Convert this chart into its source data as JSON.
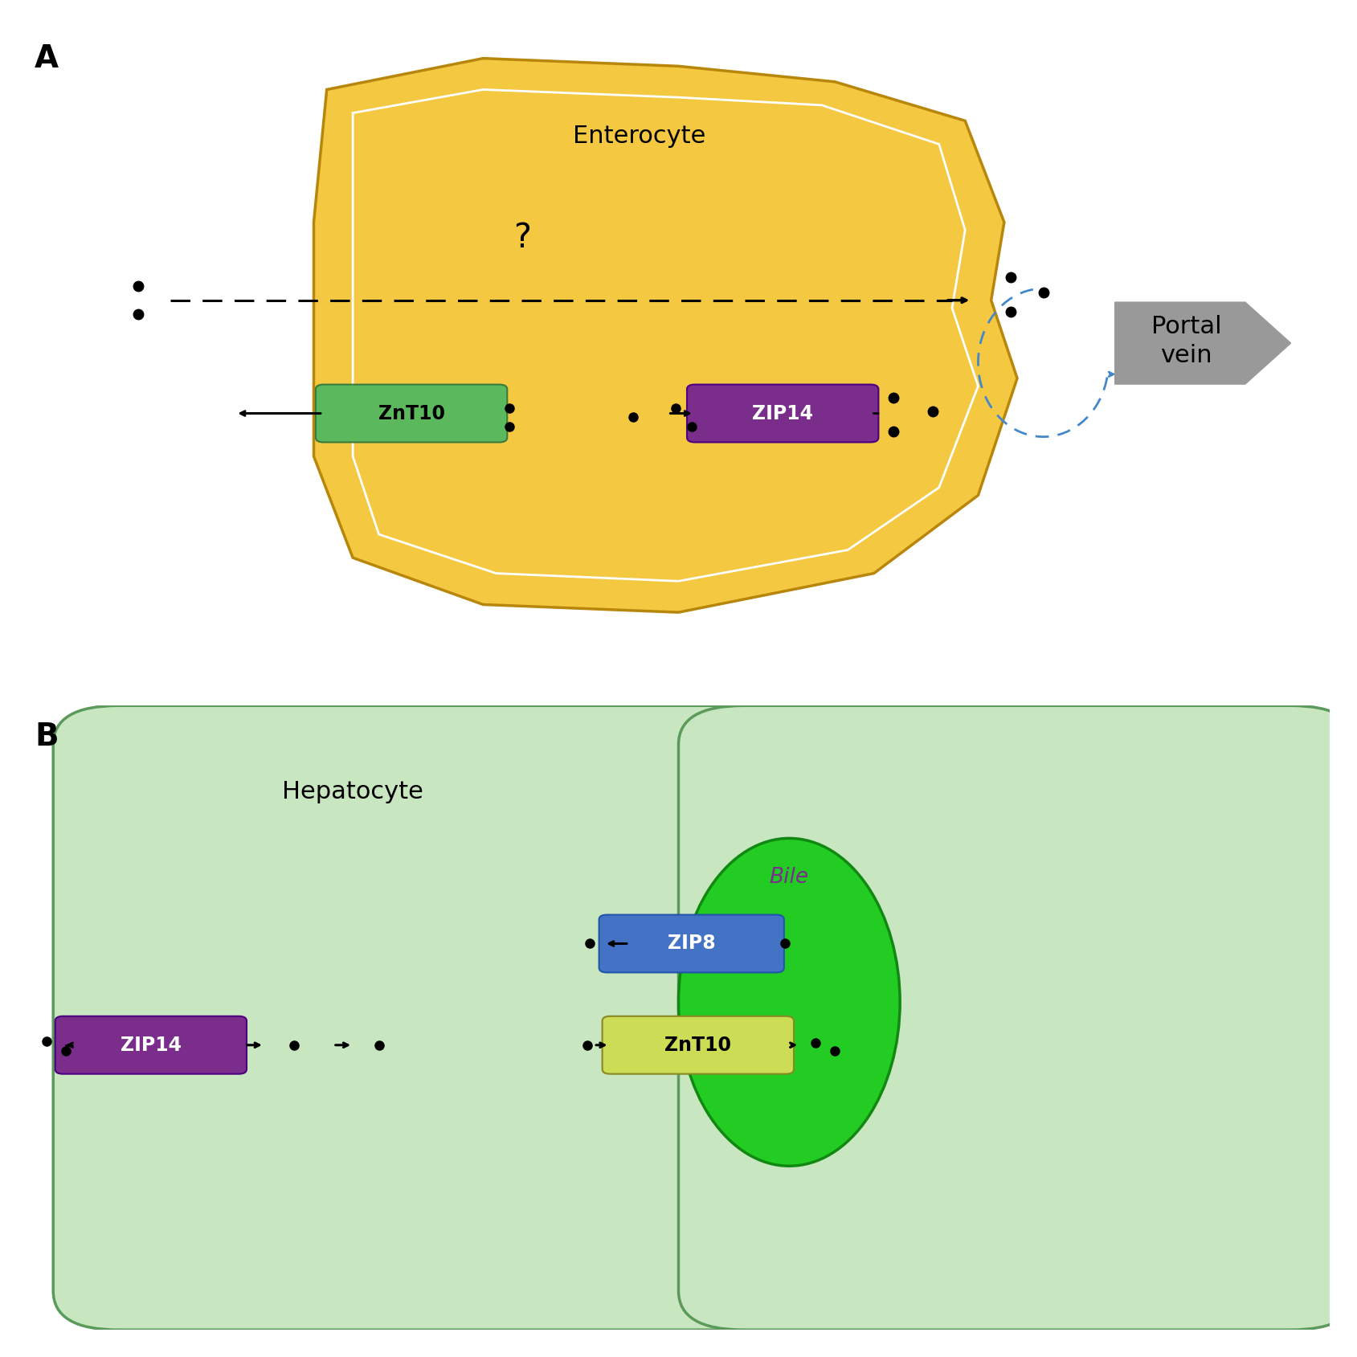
{
  "panel_A": {
    "label": "A",
    "enterocyte_label": "Enterocyte",
    "question_mark": "?",
    "portal_vein_label": "Portal\nvein",
    "znt10_label": "ZnT10",
    "zip14_label": "ZIP14",
    "enterocyte_color": "#F5C842",
    "enterocyte_border_color": "#B8860B",
    "enterocyte_inner_color": "#FFFACD",
    "znt10_bg": "#5CB85C",
    "zip14_bg": "#7B2D8B",
    "portal_arrow_color": "#999999"
  },
  "panel_B": {
    "label": "B",
    "hepatocyte_label": "Hepatocyte",
    "bile_label": "Bile",
    "zip8_label": "ZIP8",
    "znt10_label": "ZnT10",
    "zip14_label": "ZIP14",
    "hepatocyte_color": "#C8E6C0",
    "hepatocyte_border_color": "#5A9A5A",
    "bile_canaliculus_color": "#22CC22",
    "bile_text_color": "#7B2D8B",
    "zip8_bg": "#4472C4",
    "znt10_bg": "#CCDD55",
    "zip14_bg": "#7B2D8B"
  },
  "background_color": "#FFFFFF",
  "dot_color": "#000000",
  "arrow_color": "#000000",
  "blue_arrow_color": "#4488CC",
  "title_fontsize": 22,
  "protein_fontsize": 17,
  "panel_label_fontsize": 28
}
